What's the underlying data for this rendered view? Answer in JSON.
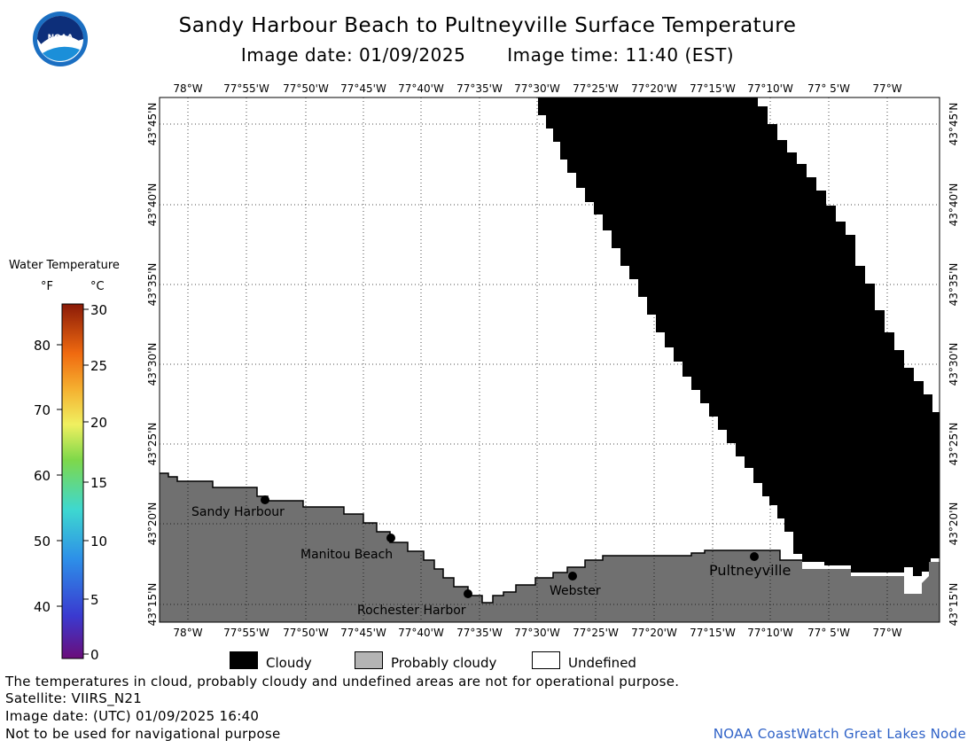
{
  "title": "Sandy Harbour Beach to Pultneyville Surface Temperature",
  "image_date_label": "Image date: 01/09/2025",
  "image_time_label": "Image time: 11:40 (EST)",
  "logo_text": "NOAA",
  "lon_labels": [
    "78°W",
    "77°55'W",
    "77°50'W",
    "77°45'W",
    "77°40'W",
    "77°35'W",
    "77°30'W",
    "77°25'W",
    "77°20'W",
    "77°15'W",
    "77°10'W",
    "77° 5'W",
    "77°W"
  ],
  "lat_labels": [
    "43°45'N",
    "43°40'N",
    "43°35'N",
    "43°30'N",
    "43°25'N",
    "43°20'N",
    "43°15'N"
  ],
  "places": [
    {
      "name": "Sandy Harbour"
    },
    {
      "name": "Manitou Beach"
    },
    {
      "name": "Rochester Harbor"
    },
    {
      "name": "Webster"
    },
    {
      "name": "Pultneyville"
    }
  ],
  "colorbar": {
    "title": "Water Temperature",
    "unit_f": "°F",
    "unit_c": "°C",
    "f_labels": [
      "80",
      "70",
      "60",
      "50",
      "40"
    ],
    "c_labels": [
      "30",
      "25",
      "20",
      "15",
      "10",
      "5",
      "0"
    ]
  },
  "legend": [
    {
      "label": "Cloudy",
      "color": "#000000"
    },
    {
      "label": "Probably cloudy",
      "color": "#b4b4b4"
    },
    {
      "label": "Undefined",
      "color": "#ffffff"
    }
  ],
  "colors": {
    "land": "#707070",
    "cloud": "#000000",
    "water": "#ffffff"
  },
  "notes": {
    "disclaimer": "The temperatures in cloud, probably cloudy and undefined areas are not for operational purpose.",
    "satellite": "Satellite: VIIRS_N21",
    "utc_date": "Image date: (UTC) 01/09/2025  16:40",
    "navigation": "Not to be used for navigational purpose"
  },
  "credit": "NOAA CoastWatch Great Lakes Node"
}
